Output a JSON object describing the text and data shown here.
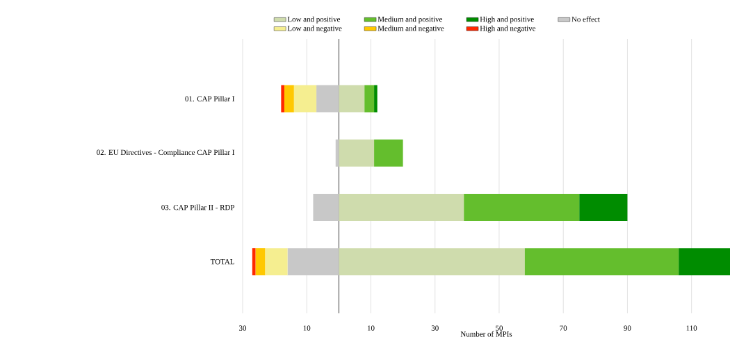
{
  "chart_data": {
    "type": "bar",
    "orientation": "horizontal",
    "stacked": true,
    "categories": [
      "01. CAP Pillar I",
      "02. EU Directives - Compliance CAP Pillar I",
      "03. CAP Pillar II - RDP",
      "TOTAL"
    ],
    "series": [
      {
        "name": "Low and positive",
        "color": "#cfdcad",
        "values": [
          8,
          11,
          39,
          58
        ]
      },
      {
        "name": "Medium and positive",
        "color": "#64be2d",
        "values": [
          3,
          9,
          36,
          48
        ]
      },
      {
        "name": "High and positive",
        "color": "#008c00",
        "values": [
          1,
          null,
          15,
          16
        ]
      },
      {
        "name": "No effect",
        "color": "#c8c8c8",
        "values": [
          -7,
          -1,
          -8,
          -16
        ]
      },
      {
        "name": "Low and negative",
        "color": "#f5ee90",
        "values": [
          -7,
          null,
          null,
          -7
        ]
      },
      {
        "name": "Medium and negative",
        "color": "#ffc800",
        "values": [
          -3,
          null,
          null,
          -3
        ]
      },
      {
        "name": "High and negative",
        "color": "#ff2800",
        "values": [
          -1,
          null,
          null,
          -1
        ]
      }
    ],
    "xlim": [
      -30,
      122
    ],
    "xticks": [
      {
        "value": -30,
        "label": "30"
      },
      {
        "value": -10,
        "label": "10"
      },
      10,
      30,
      50,
      70,
      90,
      110
    ],
    "xlabel": "Number of MPIs",
    "grid": "x",
    "legend": "top"
  }
}
